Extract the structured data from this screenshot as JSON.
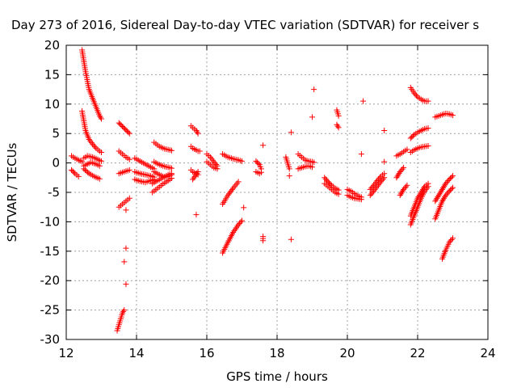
{
  "chart_data": {
    "type": "scatter",
    "title": "Day 273 of 2016, Sidereal Day-to-day VTEC variation (SDTVAR) for receiver s",
    "xlabel": "GPS time / hours",
    "ylabel": "SDTVAR / TECUs",
    "xlim": [
      12,
      24
    ],
    "ylim": [
      -30,
      20
    ],
    "xticks": [
      12,
      14,
      16,
      18,
      20,
      22,
      24
    ],
    "yticks": [
      -30,
      -25,
      -20,
      -15,
      -10,
      -5,
      0,
      5,
      10,
      15,
      20
    ],
    "grid": true,
    "marker": "+",
    "color": "#ff0000",
    "tracks": [
      {
        "x": [
          12.45,
          12.55,
          12.65,
          12.75,
          12.85,
          12.95,
          13.0
        ],
        "y": [
          19.2,
          15.5,
          12.5,
          11.0,
          9.5,
          8.0,
          7.5
        ]
      },
      {
        "x": [
          12.45,
          12.55,
          12.65,
          12.75,
          12.85,
          12.95,
          13.0
        ],
        "y": [
          8.8,
          5.5,
          4.0,
          3.2,
          2.5,
          2.0,
          1.8
        ]
      },
      {
        "x": [
          12.15,
          12.25,
          12.35,
          12.45
        ],
        "y": [
          1.2,
          0.8,
          0.5,
          0.2
        ]
      },
      {
        "x": [
          12.15,
          12.25,
          12.35
        ],
        "y": [
          -1.2,
          -1.8,
          -2.3
        ]
      },
      {
        "x": [
          12.5,
          12.6,
          12.75,
          12.9,
          13.0
        ],
        "y": [
          0.8,
          1.2,
          1.0,
          0.6,
          0.3
        ]
      },
      {
        "x": [
          12.5,
          12.65,
          12.8,
          12.95
        ],
        "y": [
          -1.0,
          -1.8,
          -2.3,
          -2.7
        ]
      },
      {
        "x": [
          12.5,
          12.6,
          12.7,
          12.85,
          12.95
        ],
        "y": [
          -0.5,
          -0.2,
          0.1,
          -0.2,
          -0.5
        ]
      },
      {
        "x": [
          13.5,
          13.6,
          13.7,
          13.8
        ],
        "y": [
          6.8,
          6.2,
          5.6,
          5.0
        ]
      },
      {
        "x": [
          13.5,
          13.6,
          13.7,
          13.8
        ],
        "y": [
          2.0,
          1.5,
          1.0,
          0.6
        ]
      },
      {
        "x": [
          13.5,
          13.6,
          13.7,
          13.8
        ],
        "y": [
          -1.8,
          -1.6,
          -1.4,
          -1.2
        ]
      },
      {
        "x": [
          13.5,
          13.6,
          13.7,
          13.8
        ],
        "y": [
          -7.5,
          -7.0,
          -6.5,
          -6.0
        ]
      },
      {
        "x": [
          13.7
        ],
        "y": [
          -8.0
        ]
      },
      {
        "x": [
          13.45,
          13.5,
          13.55,
          13.6,
          13.65
        ],
        "y": [
          -28.5,
          -27.5,
          -26.5,
          -25.5,
          -25.0
        ]
      },
      {
        "x": [
          13.7
        ],
        "y": [
          -14.5
        ]
      },
      {
        "x": [
          13.65
        ],
        "y": [
          -16.8
        ]
      },
      {
        "x": [
          13.7
        ],
        "y": [
          -20.6
        ]
      },
      {
        "x": [
          13.95,
          14.1,
          14.25,
          14.4,
          14.5
        ],
        "y": [
          0.8,
          0.3,
          -0.2,
          -0.7,
          -1.0
        ]
      },
      {
        "x": [
          13.95,
          14.1,
          14.25,
          14.4,
          14.5
        ],
        "y": [
          -1.5,
          -1.8,
          -2.0,
          -2.2,
          -2.4
        ]
      },
      {
        "x": [
          13.95,
          14.1,
          14.25,
          14.4,
          14.5
        ],
        "y": [
          -2.8,
          -3.1,
          -3.3,
          -3.0,
          -2.8
        ]
      },
      {
        "x": [
          14.5,
          14.65,
          14.8,
          14.95,
          15.0
        ],
        "y": [
          3.5,
          2.8,
          2.4,
          2.2,
          2.1
        ]
      },
      {
        "x": [
          14.5,
          14.65,
          14.8,
          14.95,
          15.0
        ],
        "y": [
          0.2,
          -0.3,
          -0.6,
          -0.8,
          -0.9
        ]
      },
      {
        "x": [
          14.5,
          14.65,
          14.8,
          14.95,
          15.0
        ],
        "y": [
          -1.5,
          -2.0,
          -2.4,
          -2.2,
          -2.0
        ]
      },
      {
        "x": [
          14.45,
          14.6,
          14.75,
          14.9,
          15.0
        ],
        "y": [
          -5.0,
          -4.3,
          -3.6,
          -3.0,
          -2.6
        ]
      },
      {
        "x": [
          14.45,
          14.6,
          14.75,
          14.9,
          15.0
        ],
        "y": [
          -3.5,
          -3.0,
          -2.5,
          -2.0,
          -1.8
        ]
      },
      {
        "x": [
          15.55,
          15.6,
          15.7,
          15.75
        ],
        "y": [
          6.3,
          6.0,
          5.5,
          5.0
        ]
      },
      {
        "x": [
          15.55,
          15.6,
          15.7,
          15.75
        ],
        "y": [
          2.8,
          2.5,
          2.2,
          2.0
        ]
      },
      {
        "x": [
          15.55,
          15.6,
          15.7,
          15.75
        ],
        "y": [
          -1.2,
          -1.5,
          -1.8,
          -2.0
        ]
      },
      {
        "x": [
          15.6,
          15.75
        ],
        "y": [
          -2.8,
          -1.5
        ]
      },
      {
        "x": [
          15.8
        ],
        "y": [
          2.0
        ]
      },
      {
        "x": [
          15.7
        ],
        "y": [
          -8.8
        ]
      },
      {
        "x": [
          16.0,
          16.1,
          16.2,
          16.3
        ],
        "y": [
          1.5,
          1.0,
          0.2,
          -0.5
        ]
      },
      {
        "x": [
          16.0,
          16.1,
          16.2,
          16.3
        ],
        "y": [
          0.2,
          -0.3,
          -0.8,
          -1.0
        ]
      },
      {
        "x": [
          16.45,
          16.6,
          16.75,
          16.9,
          17.0
        ],
        "y": [
          1.5,
          1.0,
          0.7,
          0.5,
          0.3
        ]
      },
      {
        "x": [
          16.45,
          16.6,
          16.75,
          16.9
        ],
        "y": [
          -7.0,
          -5.5,
          -4.3,
          -3.2
        ]
      },
      {
        "x": [
          16.45,
          16.6,
          16.75,
          16.9,
          17.0
        ],
        "y": [
          -15.3,
          -13.5,
          -11.8,
          -10.5,
          -9.8
        ]
      },
      {
        "x": [
          17.05
        ],
        "y": [
          -7.6
        ]
      },
      {
        "x": [
          17.4,
          17.5,
          17.55
        ],
        "y": [
          0.3,
          -0.3,
          -1.0
        ]
      },
      {
        "x": [
          17.4,
          17.5,
          17.55
        ],
        "y": [
          -1.5,
          -1.8,
          -1.6
        ]
      },
      {
        "x": [
          17.6
        ],
        "y": [
          3.0
        ]
      },
      {
        "x": [
          17.6,
          17.6
        ],
        "y": [
          -12.5,
          -13.2
        ]
      },
      {
        "x": [
          18.25,
          18.3,
          18.35
        ],
        "y": [
          1.0,
          0.0,
          -1.0
        ]
      },
      {
        "x": [
          18.35
        ],
        "y": [
          -2.2
        ]
      },
      {
        "x": [
          18.4
        ],
        "y": [
          5.2
        ]
      },
      {
        "x": [
          18.4
        ],
        "y": [
          -13.0
        ]
      },
      {
        "x": [
          18.6,
          18.7,
          18.8,
          18.9,
          19.0,
          19.05
        ],
        "y": [
          1.5,
          1.0,
          0.5,
          0.3,
          0.2,
          0.1
        ]
      },
      {
        "x": [
          18.6,
          18.7,
          18.8,
          18.9,
          19.0
        ],
        "y": [
          -1.0,
          -0.8,
          -0.6,
          -0.5,
          -0.7
        ]
      },
      {
        "x": [
          19.05
        ],
        "y": [
          12.5
        ]
      },
      {
        "x": [
          19.0
        ],
        "y": [
          7.8
        ]
      },
      {
        "x": [
          19.7,
          19.75
        ],
        "y": [
          9.0,
          8.0
        ]
      },
      {
        "x": [
          19.7,
          19.75
        ],
        "y": [
          6.5,
          6.0
        ]
      },
      {
        "x": [
          19.35,
          19.45,
          19.55,
          19.65,
          19.75
        ],
        "y": [
          -2.5,
          -3.2,
          -3.8,
          -4.3,
          -4.6
        ]
      },
      {
        "x": [
          19.35,
          19.45,
          19.55,
          19.65,
          19.75
        ],
        "y": [
          -3.5,
          -4.0,
          -4.5,
          -5.0,
          -5.3
        ]
      },
      {
        "x": [
          20.0,
          20.1,
          20.2,
          20.3,
          20.4
        ],
        "y": [
          -4.5,
          -4.8,
          -5.2,
          -5.6,
          -5.8
        ]
      },
      {
        "x": [
          20.0,
          20.1,
          20.2,
          20.3,
          20.4
        ],
        "y": [
          -5.5,
          -5.8,
          -6.0,
          -6.1,
          -6.2
        ]
      },
      {
        "x": [
          20.4
        ],
        "y": [
          1.5
        ]
      },
      {
        "x": [
          20.45
        ],
        "y": [
          10.5
        ]
      },
      {
        "x": [
          20.65,
          20.75,
          20.85,
          20.95,
          21.05
        ],
        "y": [
          -5.5,
          -4.8,
          -4.0,
          -3.2,
          -2.5
        ]
      },
      {
        "x": [
          20.65,
          20.75,
          20.85,
          20.95,
          21.05
        ],
        "y": [
          -4.5,
          -3.8,
          -3.0,
          -2.3,
          -1.8
        ]
      },
      {
        "x": [
          21.05
        ],
        "y": [
          5.5
        ]
      },
      {
        "x": [
          21.05
        ],
        "y": [
          0.2
        ]
      },
      {
        "x": [
          21.4,
          21.5,
          21.6,
          21.7
        ],
        "y": [
          1.2,
          1.5,
          1.9,
          2.3
        ]
      },
      {
        "x": [
          21.4,
          21.5,
          21.6
        ],
        "y": [
          -2.5,
          -1.5,
          -0.8
        ]
      },
      {
        "x": [
          21.5,
          21.6,
          21.7
        ],
        "y": [
          -5.5,
          -4.5,
          -3.8
        ]
      },
      {
        "x": [
          21.8,
          21.9,
          22.0,
          22.1,
          22.2,
          22.3
        ],
        "y": [
          12.8,
          11.9,
          11.2,
          10.8,
          10.5,
          10.5
        ]
      },
      {
        "x": [
          21.8,
          21.9,
          22.0,
          22.1,
          22.2,
          22.3
        ],
        "y": [
          4.2,
          4.8,
          5.2,
          5.5,
          5.8,
          5.9
        ]
      },
      {
        "x": [
          21.8,
          21.9,
          22.0,
          22.1,
          22.2,
          22.3
        ],
        "y": [
          1.8,
          2.2,
          2.5,
          2.7,
          2.8,
          2.9
        ]
      },
      {
        "x": [
          21.8,
          21.9,
          22.0,
          22.1,
          22.2,
          22.3
        ],
        "y": [
          -10.5,
          -9.0,
          -7.5,
          -6.0,
          -4.8,
          -4.0
        ]
      },
      {
        "x": [
          21.8,
          21.9,
          22.0,
          22.1,
          22.2,
          22.3
        ],
        "y": [
          -9.0,
          -7.5,
          -6.0,
          -5.0,
          -4.0,
          -3.5
        ]
      },
      {
        "x": [
          22.5,
          22.6,
          22.7,
          22.8,
          22.9,
          23.0
        ],
        "y": [
          7.8,
          8.0,
          8.2,
          8.4,
          8.3,
          8.1
        ]
      },
      {
        "x": [
          22.5,
          22.6,
          22.7,
          22.8,
          22.9,
          23.0
        ],
        "y": [
          -9.5,
          -8.0,
          -6.5,
          -5.5,
          -4.8,
          -4.2
        ]
      },
      {
        "x": [
          22.5,
          22.6,
          22.7,
          22.8,
          22.9,
          23.0
        ],
        "y": [
          -6.5,
          -5.5,
          -4.5,
          -3.5,
          -2.8,
          -2.2
        ]
      },
      {
        "x": [
          22.7,
          22.8,
          22.9,
          23.0
        ],
        "y": [
          -16.3,
          -14.8,
          -13.5,
          -12.8
        ]
      }
    ]
  }
}
